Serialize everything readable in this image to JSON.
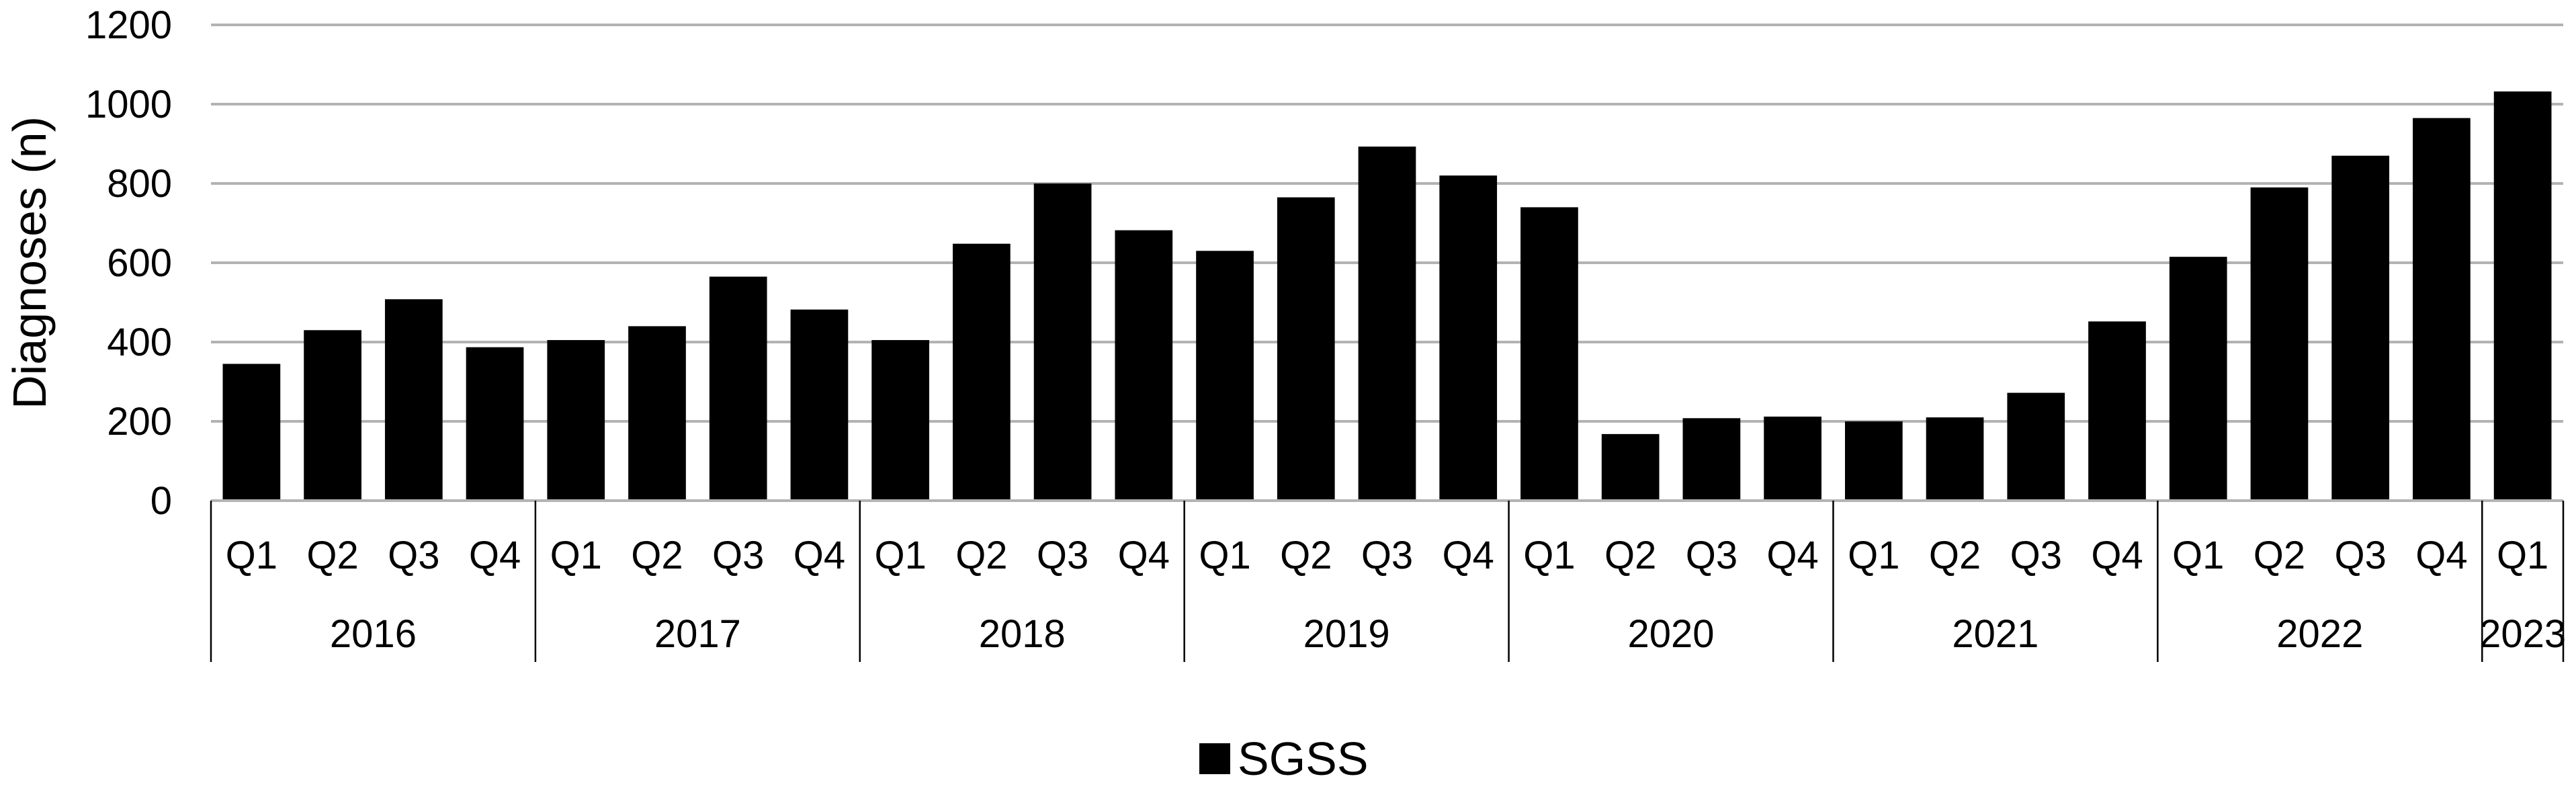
{
  "chart_data": {
    "type": "bar",
    "title": "",
    "ylabel": "Diagnoses (n)",
    "xlabel": "",
    "ylim": [
      0,
      1200
    ],
    "yticks": [
      0,
      200,
      400,
      600,
      800,
      1000,
      1200
    ],
    "grid": true,
    "legend_position": "bottom",
    "categories": [
      {
        "quarter": "Q1",
        "year": "2016"
      },
      {
        "quarter": "Q2",
        "year": "2016"
      },
      {
        "quarter": "Q3",
        "year": "2016"
      },
      {
        "quarter": "Q4",
        "year": "2016"
      },
      {
        "quarter": "Q1",
        "year": "2017"
      },
      {
        "quarter": "Q2",
        "year": "2017"
      },
      {
        "quarter": "Q3",
        "year": "2017"
      },
      {
        "quarter": "Q4",
        "year": "2017"
      },
      {
        "quarter": "Q1",
        "year": "2018"
      },
      {
        "quarter": "Q2",
        "year": "2018"
      },
      {
        "quarter": "Q3",
        "year": "2018"
      },
      {
        "quarter": "Q4",
        "year": "2018"
      },
      {
        "quarter": "Q1",
        "year": "2019"
      },
      {
        "quarter": "Q2",
        "year": "2019"
      },
      {
        "quarter": "Q3",
        "year": "2019"
      },
      {
        "quarter": "Q4",
        "year": "2019"
      },
      {
        "quarter": "Q1",
        "year": "2020"
      },
      {
        "quarter": "Q2",
        "year": "2020"
      },
      {
        "quarter": "Q3",
        "year": "2020"
      },
      {
        "quarter": "Q4",
        "year": "2020"
      },
      {
        "quarter": "Q1",
        "year": "2021"
      },
      {
        "quarter": "Q2",
        "year": "2021"
      },
      {
        "quarter": "Q3",
        "year": "2021"
      },
      {
        "quarter": "Q4",
        "year": "2021"
      },
      {
        "quarter": "Q1",
        "year": "2022"
      },
      {
        "quarter": "Q2",
        "year": "2022"
      },
      {
        "quarter": "Q3",
        "year": "2022"
      },
      {
        "quarter": "Q4",
        "year": "2022"
      },
      {
        "quarter": "Q1",
        "year": "2023"
      }
    ],
    "years": [
      "2016",
      "2017",
      "2018",
      "2019",
      "2020",
      "2021",
      "2022",
      "2023"
    ],
    "series": [
      {
        "name": "SGSS",
        "color": "#000000",
        "values": [
          345,
          430,
          508,
          387,
          405,
          440,
          565,
          482,
          405,
          648,
          800,
          682,
          630,
          765,
          893,
          820,
          740,
          168,
          208,
          212,
          200,
          210,
          272,
          452,
          615,
          790,
          870,
          965,
          1032
        ]
      }
    ]
  }
}
